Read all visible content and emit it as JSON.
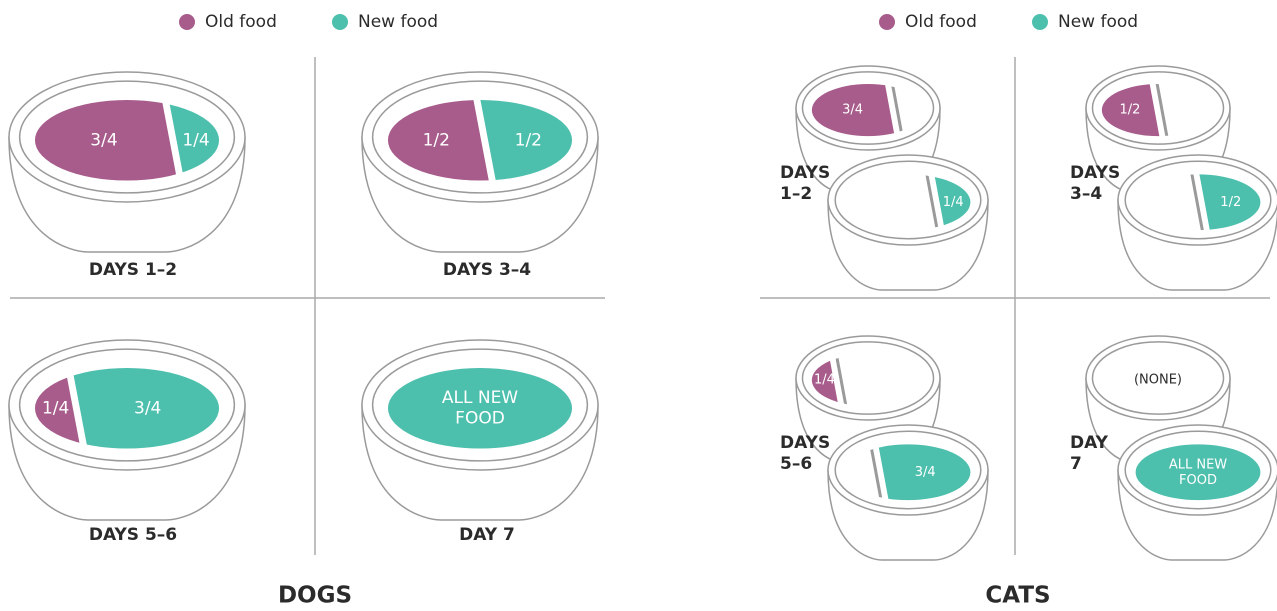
{
  "dogs": {
    "legend": {
      "old": "Old food",
      "new": "New food"
    },
    "panels": [
      {
        "label": "DAYS 1–2",
        "old": "3/4",
        "new": "1/4"
      },
      {
        "label": "DAYS 3–4",
        "old": "1/2",
        "new": "1/2"
      },
      {
        "label": "DAYS 5–6",
        "old": "1/4",
        "new": "3/4"
      },
      {
        "label": "DAY 7",
        "new": [
          "ALL NEW",
          "FOOD"
        ]
      }
    ],
    "title": "DOGS"
  },
  "cats": {
    "legend": {
      "old": "Old food",
      "new": "New food"
    },
    "panels": [
      {
        "label": [
          "DAYS",
          "1–2"
        ],
        "old_bowl": "3/4",
        "new_bowl": "1/4"
      },
      {
        "label": [
          "DAYS",
          "3–4"
        ],
        "old_bowl": "1/2",
        "new_bowl": "1/2"
      },
      {
        "label": [
          "DAYS",
          "5–6"
        ],
        "old_bowl": "1/4",
        "new_bowl": "3/4"
      },
      {
        "label": [
          "DAY",
          "7"
        ],
        "old_bowl": "(NONE)",
        "new_bowl": [
          "ALL NEW",
          "FOOD"
        ]
      }
    ],
    "title": "CATS"
  }
}
